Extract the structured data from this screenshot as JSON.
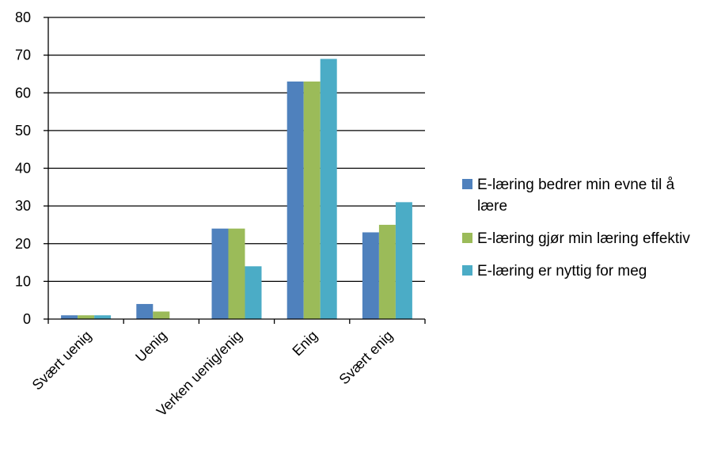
{
  "chart_data": {
    "type": "bar",
    "title": "",
    "xlabel": "",
    "ylabel": "",
    "ylim": [
      0,
      80
    ],
    "yticks": [
      0,
      10,
      20,
      30,
      40,
      50,
      60,
      70,
      80
    ],
    "grid": true,
    "legend_position": "right",
    "categories": [
      "Svært uenig",
      "Uenig",
      "Verken uenig/enig",
      "Enig",
      "Svært enig"
    ],
    "series": [
      {
        "name": "E-læring bedrer min evne til å lære",
        "color": "#4F81BD",
        "values": [
          1,
          4,
          24,
          63,
          23
        ]
      },
      {
        "name": "E-læring gjør min læring effektiv",
        "color": "#9BBB59",
        "values": [
          1,
          2,
          24,
          63,
          25
        ]
      },
      {
        "name": "E-læring er nyttig for meg",
        "color": "#4BACC6",
        "values": [
          1,
          0,
          14,
          69,
          31
        ]
      }
    ]
  }
}
